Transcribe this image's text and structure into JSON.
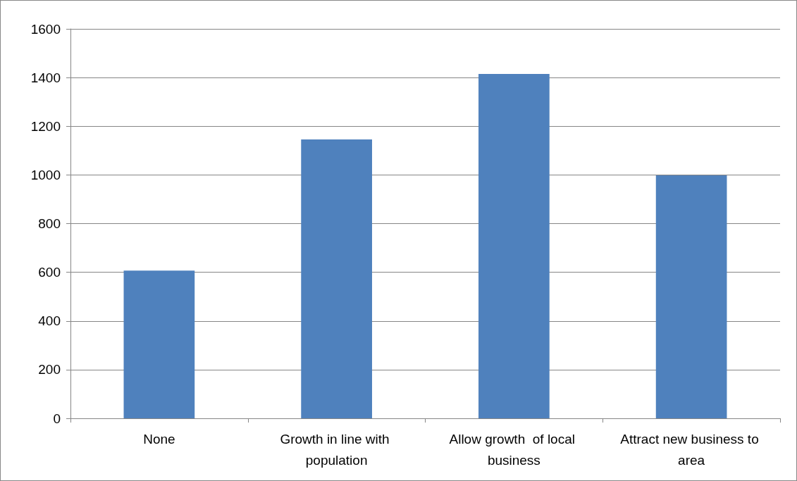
{
  "chart_data": {
    "type": "bar",
    "categories": [
      "None",
      "Growth in line with population",
      "Allow growth  of local business",
      "Attract new business to area"
    ],
    "values": [
      607,
      1146,
      1415,
      998
    ],
    "color": "#4f81bd",
    "ylim": [
      0,
      1600
    ],
    "yticks": [
      0,
      200,
      400,
      600,
      800,
      1000,
      1200,
      1400,
      1600
    ],
    "grid": "y"
  }
}
